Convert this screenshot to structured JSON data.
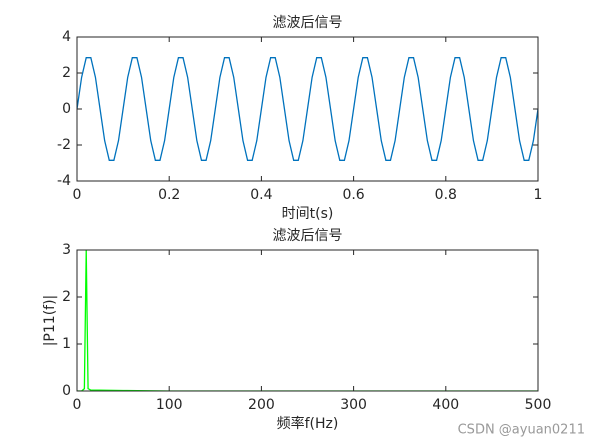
{
  "chart_data": [
    {
      "type": "line",
      "title": "滤波后信号",
      "xlabel": "时间t(s)",
      "color": "#0072bd",
      "x": [
        0,
        0.01,
        0.02,
        0.03,
        0.04,
        0.05,
        0.06,
        0.07,
        0.08,
        0.09,
        0.1,
        0.11,
        0.12,
        0.13,
        0.14,
        0.15,
        0.16,
        0.17,
        0.18,
        0.19,
        0.2,
        0.21,
        0.22,
        0.23,
        0.24,
        0.25,
        0.26,
        0.27,
        0.28,
        0.29,
        0.3,
        0.31,
        0.32,
        0.33,
        0.34,
        0.35,
        0.36,
        0.37,
        0.38,
        0.39,
        0.4,
        0.41,
        0.42,
        0.43,
        0.44,
        0.45,
        0.46,
        0.47,
        0.48,
        0.49,
        0.5,
        0.51,
        0.52,
        0.53,
        0.54,
        0.55,
        0.56,
        0.57,
        0.58,
        0.59,
        0.6,
        0.61,
        0.62,
        0.63,
        0.64,
        0.65,
        0.66,
        0.67,
        0.68,
        0.69,
        0.7,
        0.71,
        0.72,
        0.73,
        0.74,
        0.75,
        0.76,
        0.77,
        0.78,
        0.79,
        0.8,
        0.81,
        0.82,
        0.83,
        0.84,
        0.85,
        0.86,
        0.87,
        0.88,
        0.89,
        0.9,
        0.91,
        0.92,
        0.93,
        0.94,
        0.95,
        0.96,
        0.97,
        0.98,
        0.99,
        1
      ],
      "values": [
        0,
        1.76,
        2.85,
        2.85,
        1.76,
        0,
        -1.76,
        -2.85,
        -2.85,
        -1.76,
        0,
        1.76,
        2.85,
        2.85,
        1.76,
        0,
        -1.76,
        -2.85,
        -2.85,
        -1.76,
        0,
        1.76,
        2.85,
        2.85,
        1.76,
        0,
        -1.76,
        -2.85,
        -2.85,
        -1.76,
        0,
        1.76,
        2.85,
        2.85,
        1.76,
        0,
        -1.76,
        -2.85,
        -2.85,
        -1.76,
        0,
        1.76,
        2.85,
        2.85,
        1.76,
        0,
        -1.76,
        -2.85,
        -2.85,
        -1.76,
        0,
        1.76,
        2.85,
        2.85,
        1.76,
        0,
        -1.76,
        -2.85,
        -2.85,
        -1.76,
        0,
        1.76,
        2.85,
        2.85,
        1.76,
        0,
        -1.76,
        -2.85,
        -2.85,
        -1.76,
        0,
        1.76,
        2.85,
        2.85,
        1.76,
        0,
        -1.76,
        -2.85,
        -2.85,
        -1.76,
        0,
        1.76,
        2.85,
        2.85,
        1.76,
        0,
        -1.76,
        -2.85,
        -2.85,
        -1.76,
        0,
        1.76,
        2.85,
        2.85,
        1.76,
        0,
        -1.76,
        -2.85,
        -2.85,
        -1.76,
        0
      ],
      "xlim": [
        0,
        1
      ],
      "xticks": [
        0,
        0.2,
        0.4,
        0.6,
        0.8,
        1
      ],
      "ylim": [
        -4,
        4
      ],
      "yticks": [
        -4,
        -2,
        0,
        2,
        4
      ]
    },
    {
      "type": "line",
      "title": "滤波后信号",
      "xlabel": "频率f(Hz)",
      "ylabel": "|P11(f)|",
      "color": "#00ff00",
      "x": [
        0,
        5,
        8,
        10,
        12,
        15,
        50,
        100,
        500
      ],
      "values": [
        0,
        0,
        0.05,
        3,
        0.05,
        0.02,
        0.01,
        0,
        0
      ],
      "xlim": [
        0,
        500
      ],
      "xticks": [
        0,
        100,
        200,
        300,
        400,
        500
      ],
      "ylim": [
        0,
        3
      ],
      "yticks": [
        0,
        1,
        2,
        3
      ]
    }
  ],
  "watermark": "CSDN @ayuan0211"
}
